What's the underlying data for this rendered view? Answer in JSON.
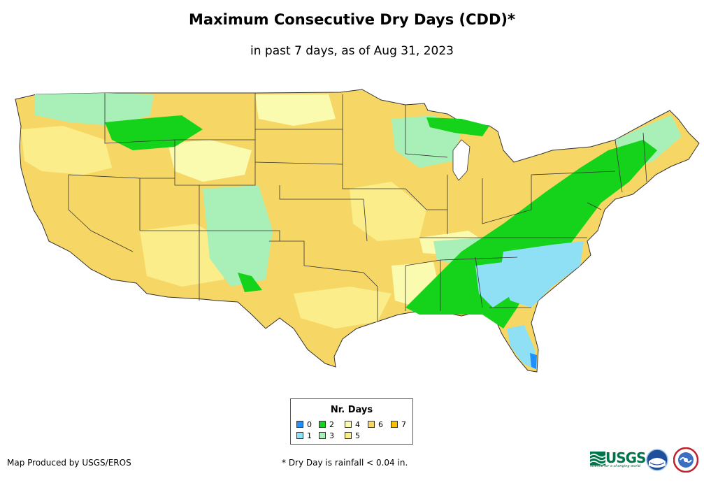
{
  "title": "Maximum Consecutive Dry Days (CDD)*",
  "subtitle": "in past 7 days, as of Aug 31, 2023",
  "legend": {
    "title": "Nr. Days",
    "items": [
      {
        "label": "0",
        "color": "#1e90ff"
      },
      {
        "label": "1",
        "color": "#8fe0f5"
      },
      {
        "label": "2",
        "color": "#15d21a"
      },
      {
        "label": "3",
        "color": "#a8f0b8"
      },
      {
        "label": "4",
        "color": "#fbfbb0"
      },
      {
        "label": "5",
        "color": "#fbee8a"
      },
      {
        "label": "6",
        "color": "#f6d765"
      },
      {
        "label": "7",
        "color": "#f6c200"
      }
    ]
  },
  "credit": "Map Produced by USGS/EROS",
  "footnote": "* Dry Day is rainfall < 0.04 in.",
  "logos": {
    "usgs_text": "USGS",
    "usgs_tagline": "science for a changing world"
  }
}
